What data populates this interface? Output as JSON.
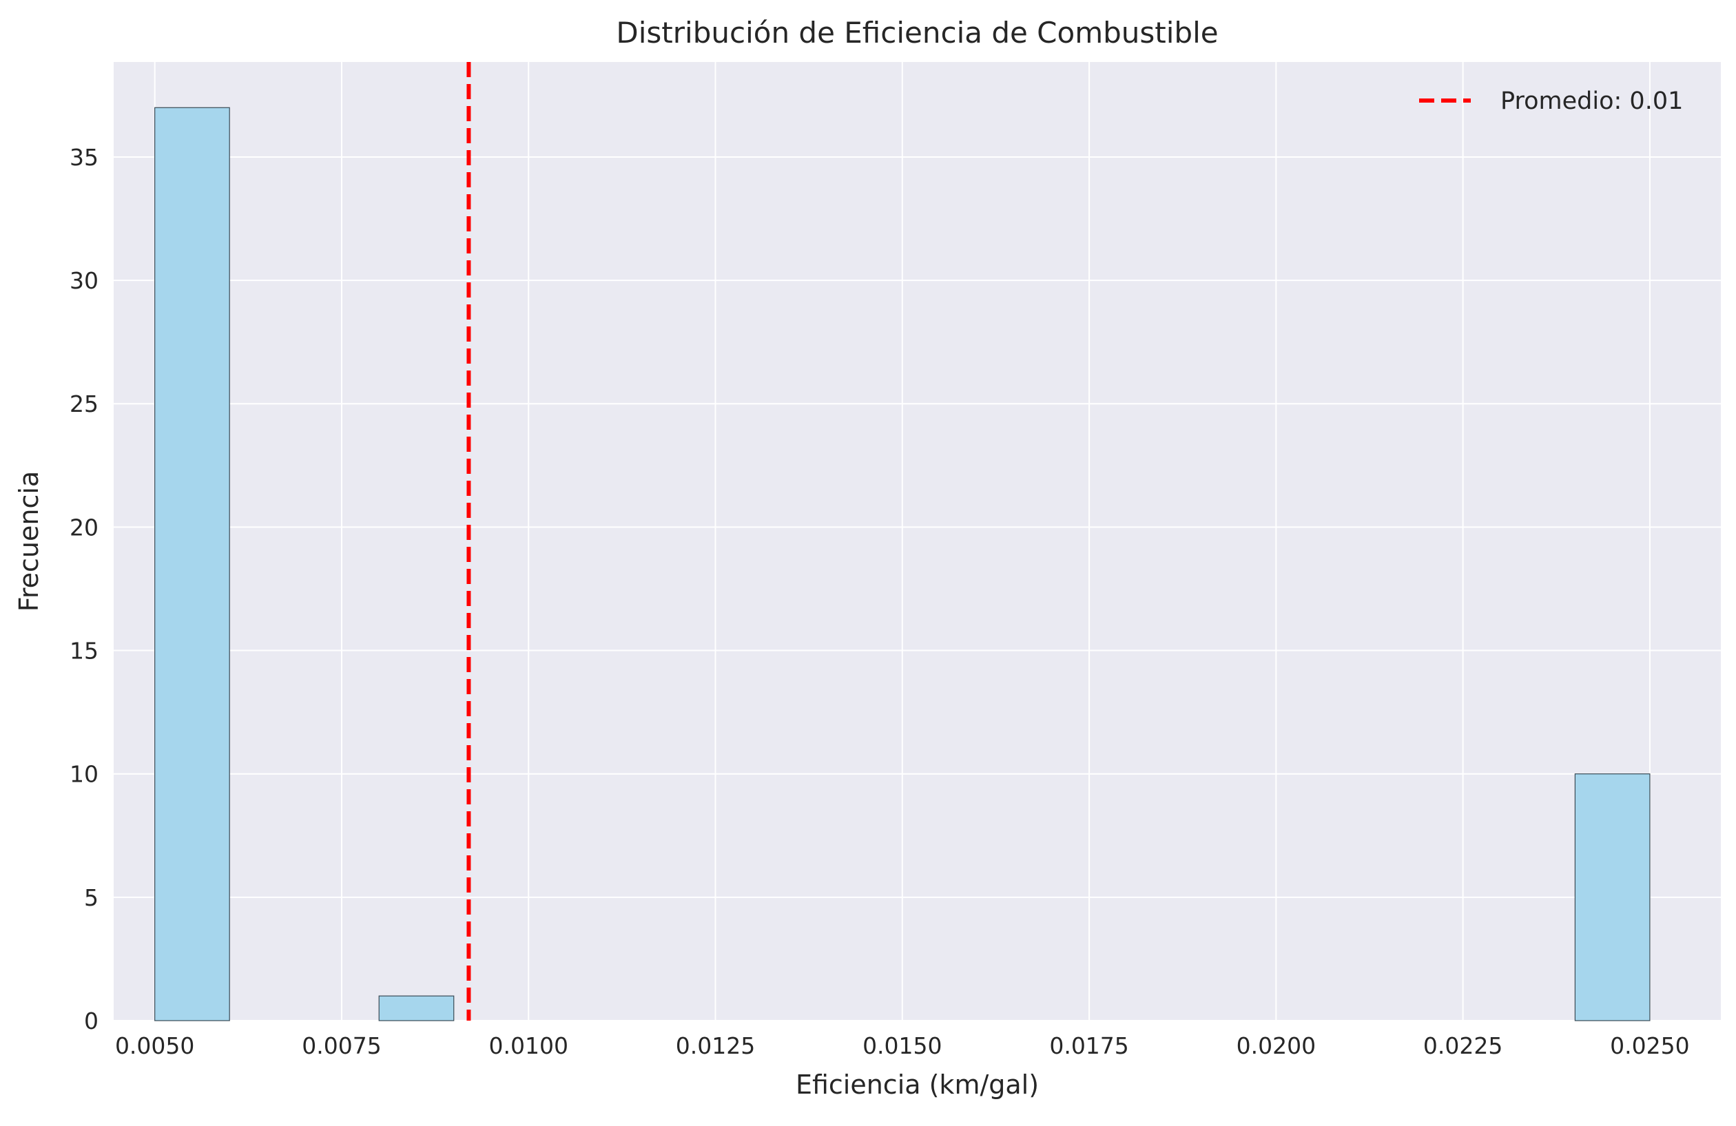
{
  "chart_data": {
    "type": "bar",
    "title": "Distribución de Eficiencia de Combustible",
    "xlabel": "Eficiencia (km/gal)",
    "ylabel": "Frecuencia",
    "xlim": [
      0.00445,
      0.02595
    ],
    "ylim": [
      0,
      38.85
    ],
    "x_ticks": [
      "0.0050",
      "0.0075",
      "0.0100",
      "0.0125",
      "0.0150",
      "0.0175",
      "0.0200",
      "0.0225",
      "0.0250"
    ],
    "x_tick_values": [
      0.005,
      0.0075,
      0.01,
      0.0125,
      0.015,
      0.0175,
      0.02,
      0.0225,
      0.025
    ],
    "y_ticks": [
      "0",
      "5",
      "10",
      "15",
      "20",
      "25",
      "30",
      "35"
    ],
    "y_tick_values": [
      0,
      5,
      10,
      15,
      20,
      25,
      30,
      35
    ],
    "grid": true,
    "bins": [
      {
        "x0": 0.005,
        "x1": 0.006,
        "count": 37
      },
      {
        "x0": 0.008,
        "x1": 0.009,
        "count": 1
      },
      {
        "x0": 0.024,
        "x1": 0.025,
        "count": 10
      }
    ],
    "mean_line": {
      "x": 0.0092,
      "label": "Promedio: 0.01",
      "color": "#ff0000",
      "style": "dashed"
    },
    "legend_position": "top-right",
    "colors": {
      "bar_fill": "#a6d6ed",
      "bar_edge": "#3a4a55",
      "plot_bg": "#eaeaf2",
      "grid": "#ffffff"
    }
  }
}
